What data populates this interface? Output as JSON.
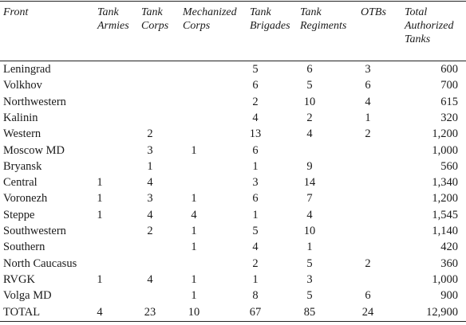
{
  "headers": [
    "Front",
    "Tank\nArmies",
    "Tank\nCorps",
    "Mechanized\nCorps",
    "Tank\nBrigades",
    "Tank\nRegiments",
    "OTBs",
    "Total\nAuthorized\nTanks"
  ],
  "rows": [
    [
      "Leningrad",
      "",
      "",
      "",
      "5",
      "6",
      "3",
      "600"
    ],
    [
      "Volkhov",
      "",
      "",
      "",
      "6",
      "5",
      "6",
      "700"
    ],
    [
      "Northwestern",
      "",
      "",
      "",
      "2",
      "10",
      "4",
      "615"
    ],
    [
      "Kalinin",
      "",
      "",
      "",
      "4",
      "2",
      "1",
      "320"
    ],
    [
      "Western",
      "",
      "2",
      "",
      "13",
      "4",
      "2",
      "1,200"
    ],
    [
      "Moscow MD",
      "",
      "3",
      "1",
      "6",
      "",
      "",
      "1,000"
    ],
    [
      "Bryansk",
      "",
      "1",
      "",
      "1",
      "9",
      "",
      "560"
    ],
    [
      "Central",
      "1",
      "4",
      "",
      "3",
      "14",
      "",
      "1,340"
    ],
    [
      "Voronezh",
      "1",
      "3",
      "1",
      "6",
      "7",
      "",
      "1,200"
    ],
    [
      "Steppe",
      "1",
      "4",
      "4",
      "1",
      "4",
      "",
      "1,545"
    ],
    [
      "Southwestern",
      "",
      "2",
      "1",
      "5",
      "10",
      "",
      "1,140"
    ],
    [
      "Southern",
      "",
      "",
      "1",
      "4",
      "1",
      "",
      "420"
    ],
    [
      "North Caucasus",
      "",
      "",
      "",
      "2",
      "5",
      "2",
      "360"
    ],
    [
      "RVGK",
      "1",
      "4",
      "1",
      "1",
      "3",
      "",
      "1,000"
    ],
    [
      "Volga MD",
      "",
      "",
      "1",
      "8",
      "5",
      "6",
      "900"
    ],
    [
      "TOTAL",
      "4",
      "23",
      "10",
      "67",
      "85",
      "24",
      "12,900"
    ]
  ]
}
